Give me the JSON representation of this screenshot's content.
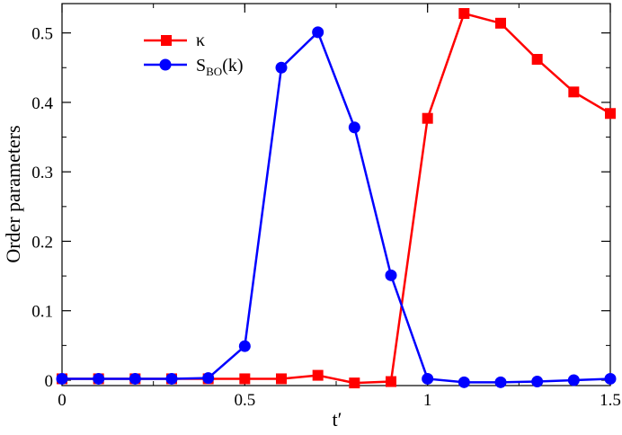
{
  "chart_data": {
    "type": "line",
    "title": "",
    "xlabel": "t′",
    "ylabel": "Order parameters",
    "xlim": [
      0,
      1.5
    ],
    "ylim": [
      0,
      0.55
    ],
    "x_ticks": [
      0,
      0.5,
      1,
      1.5
    ],
    "x_tick_labels": [
      "0",
      "0.5",
      "1",
      "1.5"
    ],
    "y_ticks": [
      0,
      0.1,
      0.2,
      0.3,
      0.4,
      0.5
    ],
    "y_tick_labels": [
      "0",
      "0.1",
      "0.2",
      "0.3",
      "0.4",
      "0.5"
    ],
    "grid": false,
    "legend_position": "top-left",
    "series": [
      {
        "name": "κ",
        "legend_label": "κ",
        "color": "#ff0000",
        "marker": "square",
        "x": [
          0,
          0.1,
          0.2,
          0.3,
          0.4,
          0.5,
          0.6,
          0.7,
          0.8,
          0.9,
          1.0,
          1.1,
          1.2,
          1.3,
          1.4,
          1.5
        ],
        "values": [
          0.002,
          0.002,
          0.002,
          0.002,
          0.002,
          0.002,
          0.002,
          0.007,
          -0.004,
          -0.002,
          0.377,
          0.528,
          0.514,
          0.462,
          0.415,
          0.384
        ]
      },
      {
        "name": "S_BO(k)",
        "legend_label_main": "S",
        "legend_label_sub": "BO",
        "legend_label_suffix": "(k)",
        "color": "#0000ff",
        "marker": "circle",
        "x": [
          0,
          0.1,
          0.2,
          0.3,
          0.4,
          0.5,
          0.6,
          0.7,
          0.8,
          0.9,
          1.0,
          1.1,
          1.2,
          1.3,
          1.4,
          1.5
        ],
        "values": [
          0.002,
          0.002,
          0.002,
          0.002,
          0.003,
          0.049,
          0.45,
          0.501,
          0.364,
          0.151,
          0.002,
          -0.003,
          -0.003,
          -0.002,
          0.0,
          0.002
        ]
      }
    ]
  }
}
